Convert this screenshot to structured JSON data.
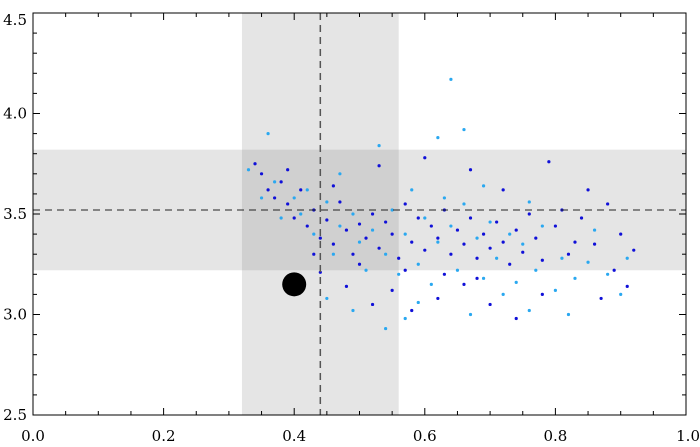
{
  "chart_data": {
    "type": "scatter",
    "title": "",
    "xlabel": "",
    "ylabel": "",
    "xlim": [
      0.0,
      1.0
    ],
    "ylim": [
      2.5,
      4.5
    ],
    "xticks": [
      0.0,
      0.2,
      0.4,
      0.6,
      0.8,
      1.0
    ],
    "xtick_labels": [
      "0.0",
      "0.2",
      "0.4",
      "0.6",
      "0.8",
      "1.0"
    ],
    "yticks": [
      2.5,
      3.0,
      3.5,
      4.0,
      4.5
    ],
    "ytick_labels": [
      "2.5",
      "3.0",
      "3.5",
      "4.0",
      "4.5"
    ],
    "x_minor_step": 0.05,
    "y_minor_step": 0.1,
    "grid": false,
    "legend": "none",
    "reference_x": 0.44,
    "reference_y": 3.52,
    "x_band": [
      0.32,
      0.56
    ],
    "y_band": [
      3.22,
      3.82
    ],
    "highlight_point": {
      "x": 0.4,
      "y": 3.15
    },
    "series": [
      {
        "color": "#1010d8",
        "points": [
          [
            0.34,
            3.75
          ],
          [
            0.35,
            3.7
          ],
          [
            0.36,
            3.62
          ],
          [
            0.37,
            3.58
          ],
          [
            0.38,
            3.66
          ],
          [
            0.39,
            3.55
          ],
          [
            0.4,
            3.48
          ],
          [
            0.41,
            3.62
          ],
          [
            0.42,
            3.44
          ],
          [
            0.43,
            3.52
          ],
          [
            0.44,
            3.38
          ],
          [
            0.45,
            3.47
          ],
          [
            0.46,
            3.35
          ],
          [
            0.47,
            3.56
          ],
          [
            0.48,
            3.42
          ],
          [
            0.49,
            3.3
          ],
          [
            0.5,
            3.45
          ],
          [
            0.51,
            3.38
          ],
          [
            0.52,
            3.5
          ],
          [
            0.53,
            3.33
          ],
          [
            0.54,
            3.46
          ],
          [
            0.55,
            3.4
          ],
          [
            0.56,
            3.28
          ],
          [
            0.57,
            3.55
          ],
          [
            0.58,
            3.36
          ],
          [
            0.59,
            3.48
          ],
          [
            0.6,
            3.32
          ],
          [
            0.61,
            3.44
          ],
          [
            0.62,
            3.38
          ],
          [
            0.63,
            3.52
          ],
          [
            0.64,
            3.3
          ],
          [
            0.65,
            3.42
          ],
          [
            0.66,
            3.35
          ],
          [
            0.67,
            3.48
          ],
          [
            0.68,
            3.28
          ],
          [
            0.69,
            3.4
          ],
          [
            0.7,
            3.33
          ],
          [
            0.71,
            3.46
          ],
          [
            0.72,
            3.36
          ],
          [
            0.73,
            3.25
          ],
          [
            0.74,
            3.42
          ],
          [
            0.75,
            3.31
          ],
          [
            0.76,
            3.5
          ],
          [
            0.77,
            3.38
          ],
          [
            0.78,
            3.27
          ],
          [
            0.8,
            3.44
          ],
          [
            0.82,
            3.3
          ],
          [
            0.84,
            3.48
          ],
          [
            0.86,
            3.35
          ],
          [
            0.88,
            3.55
          ],
          [
            0.9,
            3.4
          ],
          [
            0.92,
            3.32
          ],
          [
            0.79,
            3.76
          ],
          [
            0.85,
            3.62
          ],
          [
            0.83,
            3.36
          ],
          [
            0.81,
            3.52
          ],
          [
            0.72,
            3.62
          ],
          [
            0.67,
            3.72
          ],
          [
            0.6,
            3.78
          ],
          [
            0.53,
            3.74
          ],
          [
            0.46,
            3.64
          ],
          [
            0.39,
            3.72
          ],
          [
            0.44,
            3.21
          ],
          [
            0.48,
            3.14
          ],
          [
            0.52,
            3.05
          ],
          [
            0.55,
            3.12
          ],
          [
            0.58,
            3.02
          ],
          [
            0.62,
            3.08
          ],
          [
            0.66,
            3.15
          ],
          [
            0.7,
            3.05
          ],
          [
            0.74,
            2.98
          ],
          [
            0.78,
            3.1
          ],
          [
            0.87,
            3.08
          ],
          [
            0.91,
            3.14
          ],
          [
            0.89,
            3.22
          ],
          [
            0.5,
            3.25
          ],
          [
            0.43,
            3.3
          ],
          [
            0.57,
            3.22
          ],
          [
            0.63,
            3.2
          ],
          [
            0.68,
            3.18
          ]
        ]
      },
      {
        "color": "#2aa8f0",
        "points": [
          [
            0.33,
            3.72
          ],
          [
            0.35,
            3.58
          ],
          [
            0.37,
            3.66
          ],
          [
            0.38,
            3.48
          ],
          [
            0.4,
            3.58
          ],
          [
            0.42,
            3.62
          ],
          [
            0.43,
            3.4
          ],
          [
            0.45,
            3.56
          ],
          [
            0.46,
            3.3
          ],
          [
            0.47,
            3.44
          ],
          [
            0.49,
            3.5
          ],
          [
            0.5,
            3.36
          ],
          [
            0.51,
            3.22
          ],
          [
            0.52,
            3.42
          ],
          [
            0.54,
            3.3
          ],
          [
            0.55,
            3.52
          ],
          [
            0.56,
            3.2
          ],
          [
            0.57,
            3.4
          ],
          [
            0.59,
            3.25
          ],
          [
            0.6,
            3.48
          ],
          [
            0.61,
            3.15
          ],
          [
            0.62,
            3.36
          ],
          [
            0.64,
            3.44
          ],
          [
            0.65,
            3.22
          ],
          [
            0.66,
            3.55
          ],
          [
            0.68,
            3.38
          ],
          [
            0.69,
            3.18
          ],
          [
            0.7,
            3.46
          ],
          [
            0.71,
            3.28
          ],
          [
            0.73,
            3.4
          ],
          [
            0.74,
            3.16
          ],
          [
            0.75,
            3.35
          ],
          [
            0.77,
            3.22
          ],
          [
            0.78,
            3.44
          ],
          [
            0.8,
            3.12
          ],
          [
            0.81,
            3.28
          ],
          [
            0.83,
            3.18
          ],
          [
            0.85,
            3.26
          ],
          [
            0.88,
            3.2
          ],
          [
            0.9,
            3.1
          ],
          [
            0.64,
            4.17
          ],
          [
            0.66,
            3.92
          ],
          [
            0.36,
            3.9
          ],
          [
            0.53,
            3.84
          ],
          [
            0.62,
            3.88
          ],
          [
            0.57,
            2.98
          ],
          [
            0.54,
            2.93
          ],
          [
            0.76,
            3.02
          ],
          [
            0.82,
            3.0
          ],
          [
            0.45,
            3.08
          ],
          [
            0.49,
            3.02
          ],
          [
            0.59,
            3.06
          ],
          [
            0.67,
            3.0
          ],
          [
            0.72,
            3.1
          ],
          [
            0.58,
            3.62
          ],
          [
            0.47,
            3.7
          ],
          [
            0.41,
            3.5
          ],
          [
            0.63,
            3.58
          ],
          [
            0.69,
            3.64
          ],
          [
            0.76,
            3.56
          ],
          [
            0.86,
            3.42
          ],
          [
            0.91,
            3.28
          ]
        ]
      }
    ]
  }
}
